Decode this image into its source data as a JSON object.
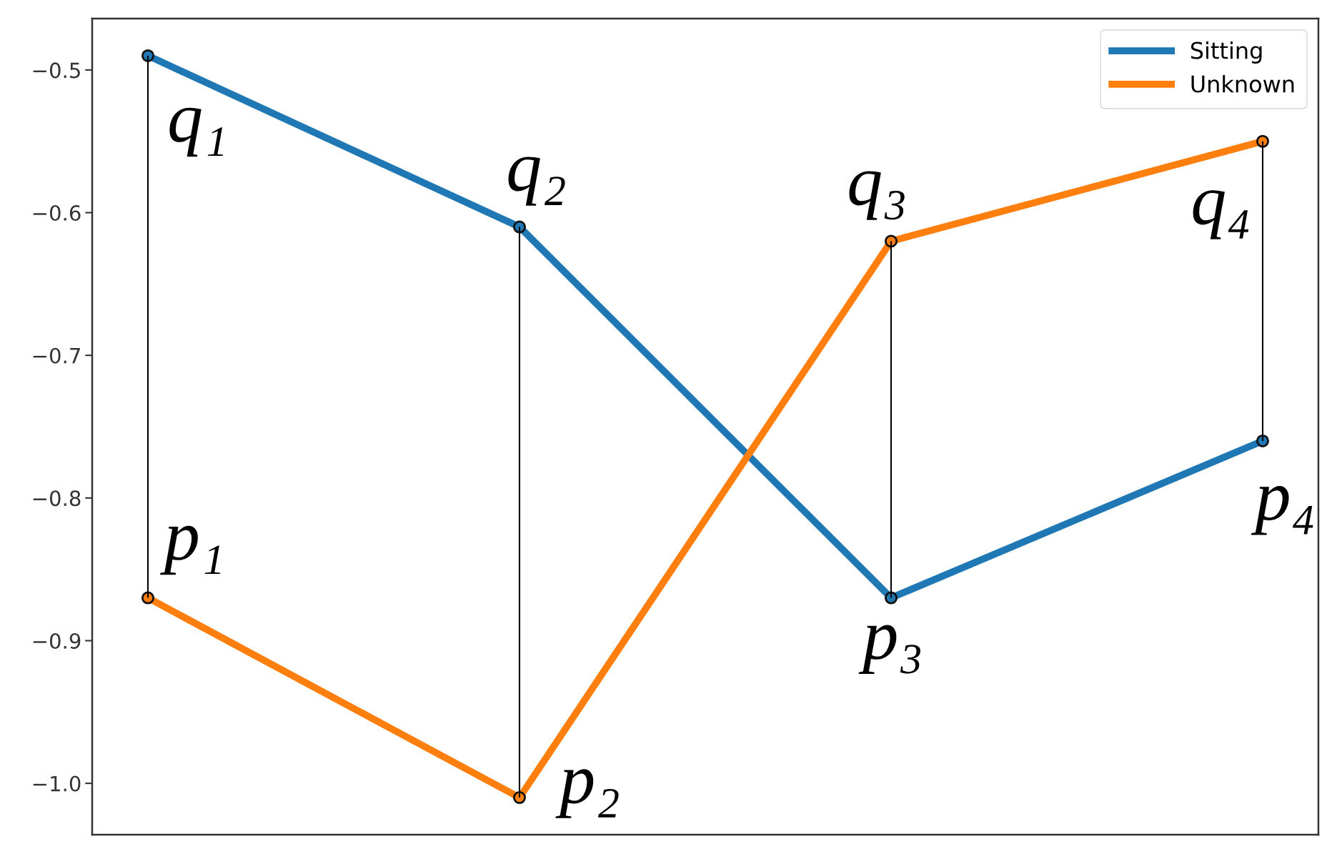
{
  "chart_data": {
    "type": "line",
    "categories": [
      null,
      null,
      null,
      null
    ],
    "series": [
      {
        "name": "Sitting",
        "color": "#1f77b4",
        "values": [
          -0.49,
          -0.61,
          -0.87,
          -0.76
        ],
        "value_labels": [
          "q₁",
          "q₂",
          "p₃",
          "p₄"
        ]
      },
      {
        "name": "Unknown",
        "color": "#ff7f0e",
        "values": [
          -0.87,
          -1.01,
          -0.62,
          -0.55
        ],
        "value_labels": [
          "p₁",
          "p₂",
          "q₃",
          "q₄"
        ]
      },
      {
        "type": "bar",
        "color": "#000000",
        "base": [
          -0.87,
          -1.01,
          -0.87,
          -0.76
        ],
        "values": [
          0.38,
          0.4,
          0.25,
          0.21
        ]
      }
    ],
    "ylim": [
      -1.036,
      -0.464
    ],
    "yticks": [
      {
        "value": -1.0,
        "label": "−1.0"
      },
      {
        "value": -0.9,
        "label": "−0.9"
      },
      {
        "value": -0.8,
        "label": "−0.8"
      },
      {
        "value": -0.7,
        "label": "−0.7"
      },
      {
        "value": -0.6,
        "label": "−0.6"
      },
      {
        "value": -0.5,
        "label": "−0.5"
      }
    ],
    "tick_labels": "y",
    "legend": "top right",
    "marker": "circle",
    "line_style": "solid"
  }
}
